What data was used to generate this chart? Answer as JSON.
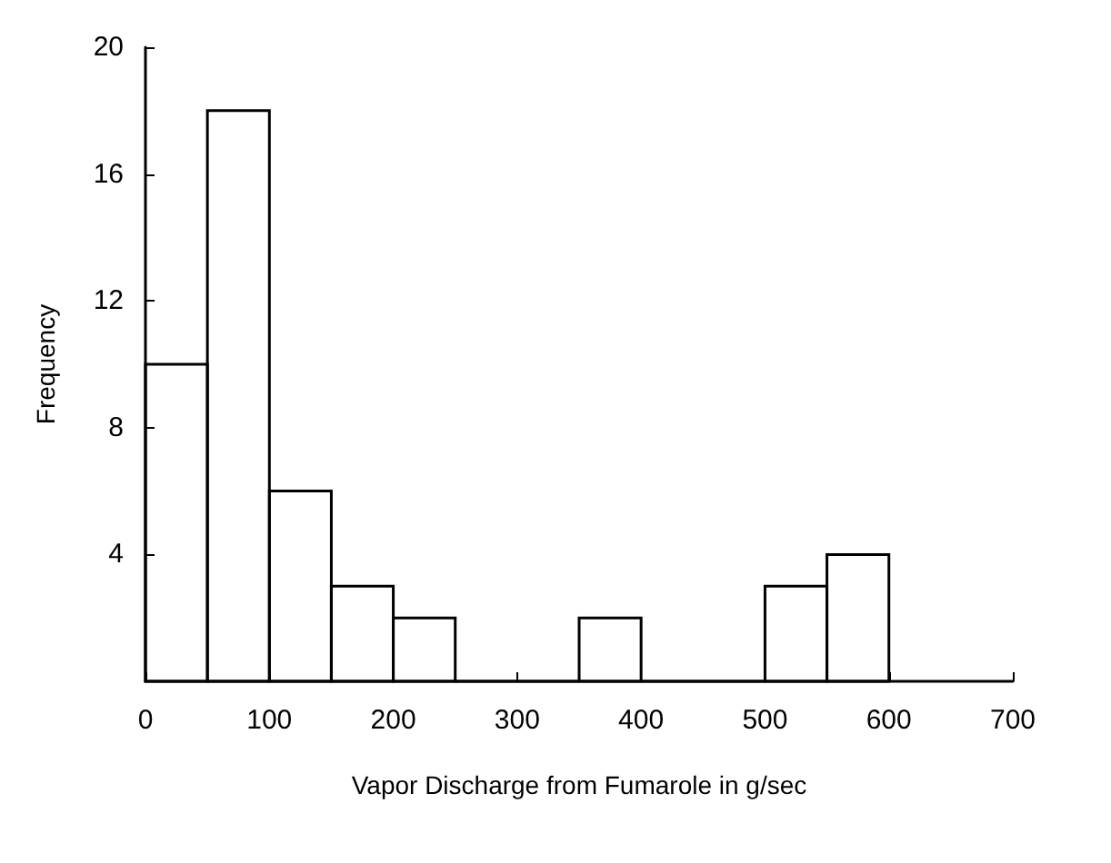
{
  "chart_data": {
    "type": "histogram",
    "xlabel": "Vapor Discharge from Fumarole in g/sec",
    "ylabel": "Frequency",
    "bins": [
      0,
      50,
      100,
      150,
      200,
      250,
      300,
      350,
      400,
      450,
      500,
      550,
      600
    ],
    "values": [
      10,
      18,
      6,
      3,
      2,
      0,
      0,
      2,
      0,
      0,
      3,
      4
    ],
    "color": "#000000",
    "xlim": [
      0,
      700
    ],
    "xticks": [
      0,
      100,
      200,
      300,
      400,
      500,
      600,
      700
    ],
    "ylim": [
      0,
      20
    ],
    "yticks": [
      4,
      8,
      12,
      16,
      20
    ],
    "grid": false
  }
}
